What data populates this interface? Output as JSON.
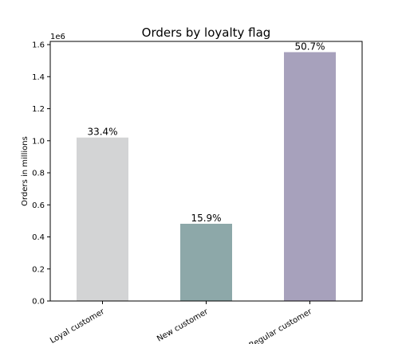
{
  "chart_data": {
    "type": "bar",
    "title": "Orders by loyalty flag",
    "xlabel": "",
    "ylabel": "Orders in millions",
    "offset_label": "1e6",
    "categories": [
      "Loyal customer",
      "New customer",
      "Regular customer"
    ],
    "values": [
      1020000,
      482000,
      1553000
    ],
    "data_labels": [
      "33.4%",
      "15.9%",
      "50.7%"
    ],
    "colors": [
      "#d3d4d5",
      "#8da8a9",
      "#a7a1bc"
    ],
    "ylim": [
      0,
      1620000
    ],
    "y_ticks": [
      0,
      200000,
      400000,
      600000,
      800000,
      1000000,
      1200000,
      1400000,
      1600000
    ],
    "y_tick_labels": [
      "0.0",
      "0.2",
      "0.4",
      "0.6",
      "0.8",
      "1.0",
      "1.2",
      "1.4",
      "1.6"
    ],
    "grid": false,
    "legend": "none",
    "x_tick_rotation": "30 degrees"
  }
}
